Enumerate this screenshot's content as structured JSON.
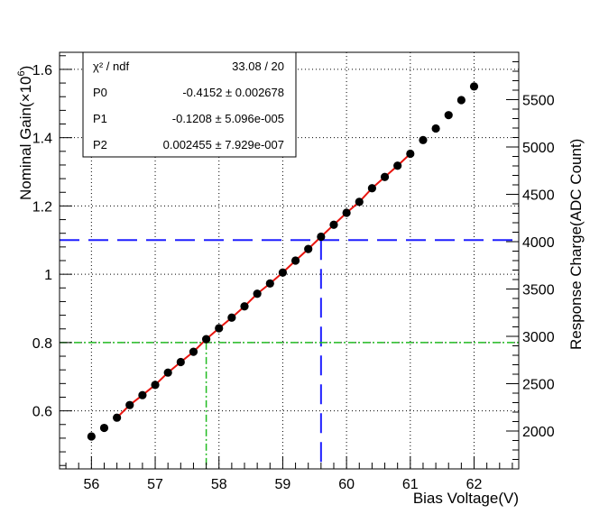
{
  "chart_data": {
    "type": "scatter",
    "title": "",
    "xlabel": "Bias Voltage(V)",
    "ylabel": "Nominal Gain(×10",
    "ylabel_exp": "6",
    "ylabel_end": ")",
    "y2label": "Response Charge(ADC Count)",
    "xlim": [
      55.5,
      62.7
    ],
    "ylim": [
      0.43,
      1.65
    ],
    "y2lim": [
      1600,
      6000
    ],
    "x_ticks": [
      56,
      57,
      58,
      59,
      60,
      61,
      62
    ],
    "x_tick_labels": [
      "56",
      "57",
      "58",
      "59",
      "60",
      "61",
      "62"
    ],
    "y_ticks": [
      0.6,
      0.8,
      1.0,
      1.2,
      1.4,
      1.6
    ],
    "y_tick_labels": [
      "0.6",
      "0.8",
      "1",
      "1.2",
      "1.4",
      "1.6"
    ],
    "y2_ticks": [
      2000,
      2500,
      3000,
      3500,
      4000,
      4500,
      5000,
      5500
    ],
    "y2_tick_labels": [
      "2000",
      "2500",
      "3000",
      "3500",
      "4000",
      "4500",
      "5000",
      "5500"
    ],
    "grid": true,
    "series": [
      {
        "x": [
          56.0,
          56.2,
          56.4,
          56.6,
          56.8,
          57.0,
          57.2,
          57.4,
          57.6,
          57.8,
          58.0,
          58.2,
          58.4,
          58.6,
          58.8,
          59.0,
          59.2,
          59.4,
          59.6,
          59.8,
          60.0,
          60.2,
          60.4,
          60.6,
          60.8,
          61.0,
          61.2,
          61.4,
          61.6,
          61.8,
          62.0
        ],
        "y": [
          0.525,
          0.55,
          0.58,
          0.617,
          0.646,
          0.676,
          0.712,
          0.743,
          0.773,
          0.81,
          0.842,
          0.873,
          0.906,
          0.943,
          0.973,
          1.005,
          1.04,
          1.074,
          1.11,
          1.145,
          1.18,
          1.212,
          1.252,
          1.285,
          1.318,
          1.353,
          1.393,
          1.427,
          1.466,
          1.51,
          1.55
        ]
      }
    ],
    "fit": {
      "p0": -0.4152,
      "p1": -0.1208,
      "p2": 0.002455,
      "x_range": [
        56.4,
        61.0
      ]
    },
    "ref_lines": [
      {
        "style": "blue-dash",
        "color": "#1f1fff",
        "y": 1.1,
        "x": 59.6
      },
      {
        "style": "green-dashdot",
        "color": "#22bb22",
        "y": 0.8,
        "x": 57.8
      }
    ],
    "colors": {
      "markers": "#000000",
      "fit": "#e8150f"
    },
    "stats": {
      "rows": [
        {
          "label": "χ² / ndf",
          "value": "33.08 / 20"
        },
        {
          "label": "P0",
          "value": "-0.4152 ± 0.002678"
        },
        {
          "label": "P1",
          "value": "-0.1208 ± 5.096e-005"
        },
        {
          "label": "P2",
          "value": "0.002455 ± 7.929e-007"
        }
      ]
    }
  }
}
